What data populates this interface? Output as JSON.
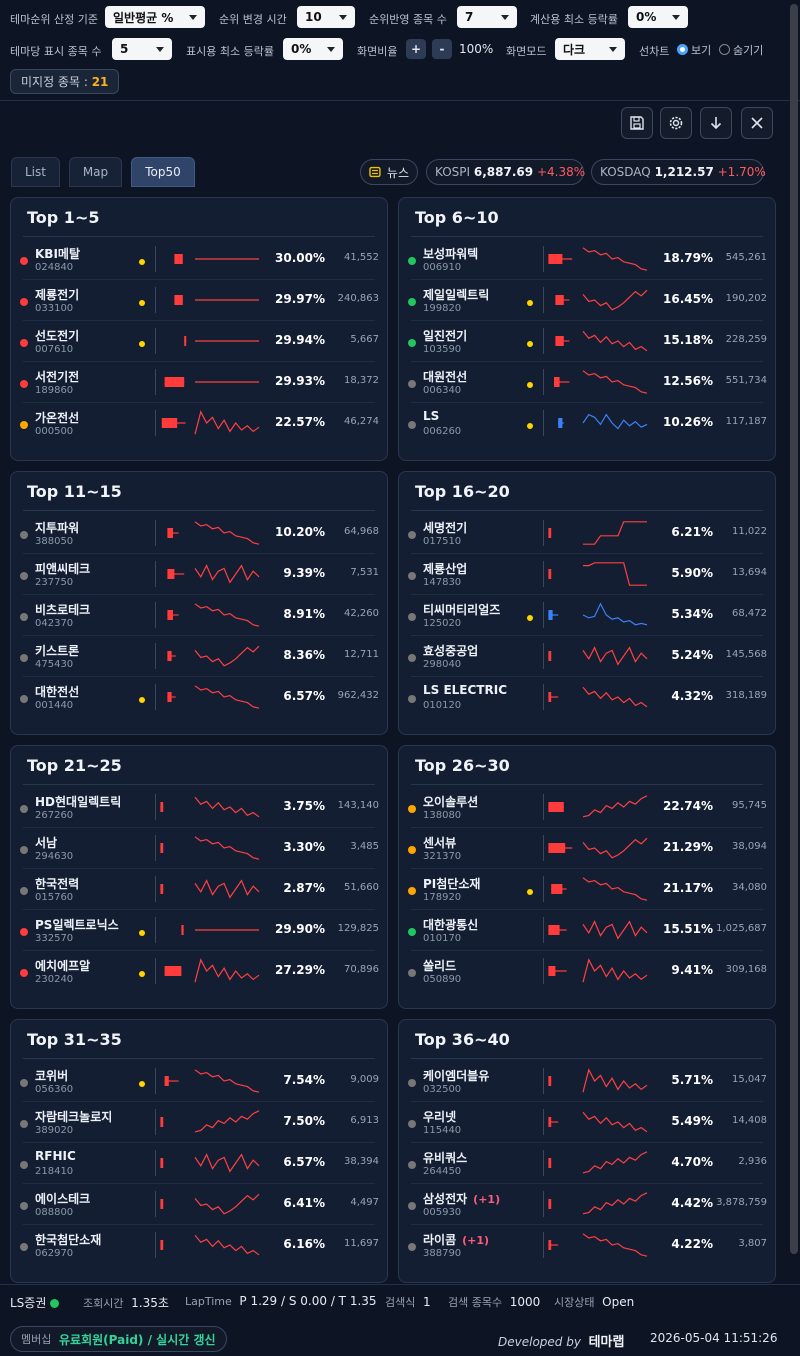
{
  "controls": {
    "row1": [
      {
        "label": "테마순위 산정 기준",
        "value": "일반평균 %"
      },
      {
        "label": "순위 변경 시간",
        "value": "10"
      },
      {
        "label": "순위반영 종목 수",
        "value": "7"
      },
      {
        "label": "계산용 최소 등락률",
        "value": "0%"
      }
    ],
    "row2": [
      {
        "label": "테마당 표시 종목 수",
        "value": "5"
      },
      {
        "label": "표시용 최소 등락률",
        "value": "0%"
      }
    ],
    "ratio_label": "화면비율",
    "ratio_plus": "+",
    "ratio_minus": "-",
    "ratio_value": "100%",
    "mode_label": "화면모드",
    "mode_value": "다크",
    "linechart_label": "선차트",
    "show_label": "보기",
    "hide_label": "숨기기",
    "unassigned_label": "미지정 종목 :",
    "unassigned_count": "21"
  },
  "toolbar": {
    "icons": [
      "save-icon",
      "settings-icon",
      "download-icon",
      "close-icon"
    ]
  },
  "tabs": [
    "List",
    "Map",
    "Top50"
  ],
  "active_tab": "Top50",
  "news_label": "뉴스",
  "indices": [
    {
      "name": "KOSPI",
      "value": "6,887.69",
      "change": "+4.38%"
    },
    {
      "name": "KOSDAQ",
      "value": "1,212.57",
      "change": "+1.70%"
    }
  ],
  "cards": [
    {
      "title": "Top 1~5",
      "rows": [
        {
          "name": "KBI메탈",
          "code": "024840",
          "pct": "30.00%",
          "vol": "41,552",
          "dot": "#ff3b3b",
          "ydot": true,
          "c": [
            0.55,
            0.3,
            "r"
          ],
          "spark": "flat"
        },
        {
          "name": "제룡전기",
          "code": "033100",
          "pct": "29.97%",
          "vol": "240,863",
          "dot": "#ff3b3b",
          "ydot": true,
          "c": [
            0.55,
            0.3,
            "r"
          ],
          "spark": "flat"
        },
        {
          "name": "선도전기",
          "code": "007610",
          "pct": "29.94%",
          "vol": "5,667",
          "dot": "#ff3b3b",
          "ydot": true,
          "c": [
            0.9,
            0.06,
            "r"
          ],
          "spark": "flat"
        },
        {
          "name": "서전기전",
          "code": "189860",
          "pct": "29.93%",
          "vol": "18,372",
          "dot": "#ff3b3b",
          "ydot": false,
          "c": [
            0.2,
            0.7,
            "r"
          ],
          "spark": "flat"
        },
        {
          "name": "가온전선",
          "code": "000500",
          "pct": "22.57%",
          "vol": "46,274",
          "dot": "#ffa500",
          "ydot": false,
          "c": [
            0.1,
            0.55,
            "r",
            0.95
          ],
          "spark": "wave"
        }
      ]
    },
    {
      "title": "Top 6~10",
      "rows": [
        {
          "name": "보성파워텍",
          "code": "006910",
          "pct": "18.79%",
          "vol": "545,261",
          "dot": "#22c55e",
          "ydot": false,
          "c": [
            0.05,
            0.5,
            "r",
            0.9
          ],
          "spark": "down"
        },
        {
          "name": "제일일렉트릭",
          "code": "199820",
          "pct": "16.45%",
          "vol": "190,202",
          "dot": "#22c55e",
          "ydot": true,
          "c": [
            0.3,
            0.3,
            "r",
            0.8
          ],
          "spark": "vup"
        },
        {
          "name": "일진전기",
          "code": "103590",
          "pct": "15.18%",
          "vol": "228,259",
          "dot": "#22c55e",
          "ydot": true,
          "c": [
            0.3,
            0.3,
            "r",
            0.8
          ],
          "spark": "down2"
        },
        {
          "name": "대원전선",
          "code": "006340",
          "pct": "12.56%",
          "vol": "551,734",
          "dot": "#777777",
          "ydot": true,
          "c": [
            0.25,
            0.2,
            "r",
            0.8
          ],
          "spark": "down"
        },
        {
          "name": "LS",
          "code": "006260",
          "pct": "10.26%",
          "vol": "117,187",
          "dot": "#777777",
          "ydot": true,
          "c": [
            0.4,
            0.15,
            "b",
            0.6
          ],
          "spark": "blue",
          "blue": true
        }
      ]
    },
    {
      "title": "Top 11~15",
      "rows": [
        {
          "name": "지투파워",
          "code": "388050",
          "pct": "10.20%",
          "vol": "64,968",
          "dot": "#777777",
          "ydot": false,
          "c": [
            0.3,
            0.2,
            "r",
            0.7
          ],
          "spark": "down"
        },
        {
          "name": "피앤씨테크",
          "code": "237750",
          "pct": "9.39%",
          "vol": "7,531",
          "dot": "#777777",
          "ydot": false,
          "c": [
            0.3,
            0.25,
            "r",
            0.9
          ],
          "spark": "wave2"
        },
        {
          "name": "비츠로테크",
          "code": "042370",
          "pct": "8.91%",
          "vol": "42,260",
          "dot": "#777777",
          "ydot": false,
          "c": [
            0.3,
            0.2,
            "r",
            0.7
          ],
          "spark": "down"
        },
        {
          "name": "키스트론",
          "code": "475430",
          "pct": "8.36%",
          "vol": "12,711",
          "dot": "#777777",
          "ydot": false,
          "c": [
            0.3,
            0.15,
            "r",
            0.6
          ],
          "spark": "vup"
        },
        {
          "name": "대한전선",
          "code": "001440",
          "pct": "6.57%",
          "vol": "962,432",
          "dot": "#777777",
          "ydot": true,
          "c": [
            0.3,
            0.15,
            "r",
            0.6
          ],
          "spark": "down"
        }
      ]
    },
    {
      "title": "Top 16~20",
      "rows": [
        {
          "name": "세명전기",
          "code": "017510",
          "pct": "6.21%",
          "vol": "11,022",
          "dot": "#777777",
          "ydot": false,
          "c": [
            0.05,
            0.1,
            "r"
          ],
          "spark": "step"
        },
        {
          "name": "제룡산업",
          "code": "147830",
          "pct": "5.90%",
          "vol": "13,694",
          "dot": "#777777",
          "ydot": false,
          "c": [
            0.05,
            0.1,
            "r"
          ],
          "spark": "stepdown"
        },
        {
          "name": "티씨머티리얼즈",
          "code": "125020",
          "pct": "5.34%",
          "vol": "68,472",
          "dot": "#777777",
          "ydot": true,
          "c": [
            0.05,
            0.15,
            "b",
            0.4
          ],
          "spark": "blue2",
          "blue": true
        },
        {
          "name": "효성중공업",
          "code": "298040",
          "pct": "5.24%",
          "vol": "145,568",
          "dot": "#777777",
          "ydot": false,
          "c": [
            0.05,
            0.1,
            "r"
          ],
          "spark": "wave2"
        },
        {
          "name": "LS ELECTRIC",
          "code": "010120",
          "pct": "4.32%",
          "vol": "318,189",
          "dot": "#777777",
          "ydot": false,
          "c": [
            0.05,
            0.1,
            "r",
            0.4
          ],
          "spark": "down2"
        }
      ]
    },
    {
      "title": "Top 21~25",
      "rows": [
        {
          "name": "HD현대일렉트릭",
          "code": "267260",
          "pct": "3.75%",
          "vol": "143,140",
          "dot": "#777777",
          "ydot": false,
          "c": [
            0.05,
            0.1,
            "r"
          ],
          "spark": "down2"
        },
        {
          "name": "서남",
          "code": "294630",
          "pct": "3.30%",
          "vol": "3,485",
          "dot": "#777777",
          "ydot": false,
          "c": [
            0.05,
            0.1,
            "r"
          ],
          "spark": "down"
        },
        {
          "name": "한국전력",
          "code": "015760",
          "pct": "2.87%",
          "vol": "51,660",
          "dot": "#777777",
          "ydot": false,
          "c": [
            0.05,
            0.1,
            "r"
          ],
          "spark": "wave2"
        },
        {
          "name": "PS일렉트로닉스",
          "code": "332570",
          "pct": "29.90%",
          "vol": "129,825",
          "dot": "#ff3b3b",
          "ydot": true,
          "c": [
            0.8,
            0.08,
            "r",
            0.6
          ],
          "spark": "flat"
        },
        {
          "name": "에치에프알",
          "code": "230240",
          "pct": "27.29%",
          "vol": "70,896",
          "dot": "#ff3b3b",
          "ydot": true,
          "c": [
            0.2,
            0.6,
            "r"
          ],
          "spark": "wave"
        }
      ]
    },
    {
      "title": "Top 26~30",
      "rows": [
        {
          "name": "오이솔루션",
          "code": "138080",
          "pct": "22.74%",
          "vol": "95,745",
          "dot": "#ffa500",
          "ydot": false,
          "c": [
            0.05,
            0.55,
            "r"
          ],
          "spark": "up"
        },
        {
          "name": "센서뷰",
          "code": "321370",
          "pct": "21.29%",
          "vol": "38,094",
          "dot": "#ffa500",
          "ydot": false,
          "c": [
            0.05,
            0.6,
            "r",
            0.9
          ],
          "spark": "vup"
        },
        {
          "name": "PI첨단소재",
          "code": "178920",
          "pct": "21.17%",
          "vol": "34,080",
          "dot": "#ffa500",
          "ydot": true,
          "c": [
            0.15,
            0.4,
            "r",
            0.7
          ],
          "spark": "down"
        },
        {
          "name": "대한광통신",
          "code": "010170",
          "pct": "15.51%",
          "vol": "1,025,687",
          "dot": "#22c55e",
          "ydot": false,
          "c": [
            0.05,
            0.4,
            "r",
            0.7
          ],
          "spark": "wave2"
        },
        {
          "name": "쏠리드",
          "code": "050890",
          "pct": "9.41%",
          "vol": "309,168",
          "dot": "#777777",
          "ydot": false,
          "c": [
            0.05,
            0.25,
            "r",
            0.7
          ],
          "spark": "wave"
        }
      ]
    },
    {
      "title": "Top 31~35",
      "rows": [
        {
          "name": "코위버",
          "code": "056360",
          "pct": "7.54%",
          "vol": "9,009",
          "dot": "#777777",
          "ydot": true,
          "c": [
            0.2,
            0.15,
            "r",
            0.7
          ],
          "spark": "down"
        },
        {
          "name": "자람테크놀로지",
          "code": "389020",
          "pct": "7.50%",
          "vol": "6,913",
          "dot": "#777777",
          "ydot": false,
          "c": [
            0.05,
            0.1,
            "r"
          ],
          "spark": "up"
        },
        {
          "name": "RFHIC",
          "code": "218410",
          "pct": "6.57%",
          "vol": "38,394",
          "dot": "#777777",
          "ydot": false,
          "c": [
            0.05,
            0.1,
            "r"
          ],
          "spark": "wave2"
        },
        {
          "name": "에이스테크",
          "code": "088800",
          "pct": "6.41%",
          "vol": "4,497",
          "dot": "#777777",
          "ydot": false,
          "c": [
            0.05,
            0.1,
            "r"
          ],
          "spark": "vup"
        },
        {
          "name": "한국첨단소재",
          "code": "062970",
          "pct": "6.16%",
          "vol": "11,697",
          "dot": "#777777",
          "ydot": false,
          "c": [
            0.05,
            0.1,
            "r"
          ],
          "spark": "down2"
        }
      ]
    },
    {
      "title": "Top 36~40",
      "rows": [
        {
          "name": "케이엠더블유",
          "code": "032500",
          "pct": "5.71%",
          "vol": "15,047",
          "dot": "#777777",
          "ydot": false,
          "c": [
            0.05,
            0.1,
            "r"
          ],
          "spark": "wave"
        },
        {
          "name": "우리넷",
          "code": "115440",
          "pct": "5.49%",
          "vol": "14,408",
          "dot": "#777777",
          "ydot": false,
          "c": [
            0.05,
            0.1,
            "r",
            0.4
          ],
          "spark": "down2"
        },
        {
          "name": "유비쿼스",
          "code": "264450",
          "pct": "4.70%",
          "vol": "2,936",
          "dot": "#777777",
          "ydot": false,
          "c": [
            0.05,
            0.1,
            "r"
          ],
          "spark": "up"
        },
        {
          "name": "삼성전자",
          "mark": "(+1)",
          "code": "005930",
          "pct": "4.42%",
          "vol": "3,878,759",
          "dot": "#777777",
          "ydot": false,
          "c": [
            0.05,
            0.1,
            "r"
          ],
          "spark": "up"
        },
        {
          "name": "라이콤",
          "mark": "(+1)",
          "code": "388790",
          "pct": "4.22%",
          "vol": "3,807",
          "dot": "#777777",
          "ydot": false,
          "c": [
            0.05,
            0.1,
            "r",
            0.4
          ],
          "spark": "down"
        }
      ]
    }
  ],
  "status": {
    "broker": "LS증권",
    "query_time_label": "조회시간",
    "query_time": "1.35초",
    "laptime_label": "LapTime",
    "laptime": "P 1.29 / S 0.00 / T 1.35",
    "search_label": "검색식",
    "search_value": "1",
    "count_label": "검색 종목수",
    "count_value": "1000",
    "market_label": "시장상태",
    "market_value": "Open"
  },
  "footer": {
    "membership_label": "멤버십",
    "membership_value": "유료회원(Paid) / 실시간 갱신",
    "developed_by": "Developed by",
    "brand": "테마랩",
    "datetime": "2026-05-04 11:51:26"
  }
}
